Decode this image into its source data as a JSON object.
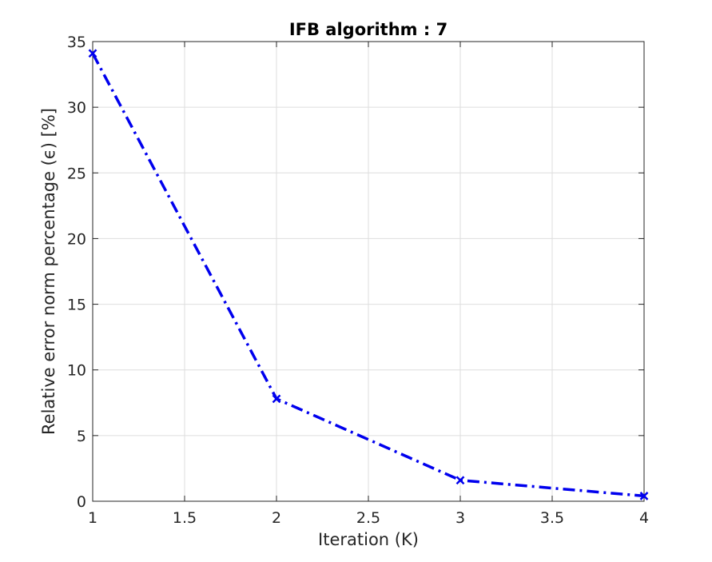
{
  "chart_data": {
    "type": "line",
    "title": "IFB algorithm : 7",
    "xlabel": "Iteration (K)",
    "ylabel": "Relative error norm percentage (ϵ) [%]",
    "xlim": [
      1,
      4
    ],
    "ylim": [
      0,
      35
    ],
    "xticks": [
      1,
      1.5,
      2,
      2.5,
      3,
      3.5,
      4
    ],
    "xtick_labels": [
      "1",
      "1.5",
      "2",
      "2.5",
      "3",
      "3.5",
      "4"
    ],
    "yticks": [
      0,
      5,
      10,
      15,
      20,
      25,
      30,
      35
    ],
    "ytick_labels": [
      "0",
      "5",
      "10",
      "15",
      "20",
      "25",
      "30",
      "35"
    ],
    "grid": true,
    "series": [
      {
        "x": [
          1,
          2,
          3,
          4
        ],
        "y": [
          34.1,
          7.8,
          1.6,
          0.4
        ],
        "color": "#0000ee",
        "line_style": "dash-dot",
        "marker": "x"
      }
    ]
  }
}
